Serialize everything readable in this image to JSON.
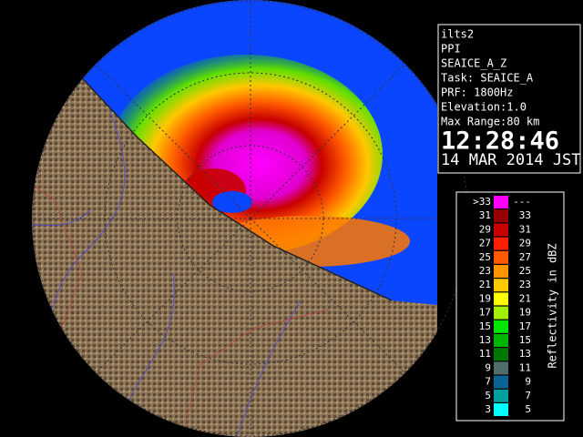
{
  "station": {
    "lines": [
      "ilts2",
      "PPI",
      "SEAICE_A_Z",
      "Task: SEAICE_A",
      "PRF: 1800Hz",
      "Elevation:1.0",
      "Max Range:80 km"
    ],
    "time": "12:28:46",
    "date": "14 MAR 2014 JST"
  },
  "legend": {
    "title": "Reflectivity in dBZ",
    "rows": [
      {
        "low": ">33",
        "high": "---",
        "color": "#ff00ff"
      },
      {
        "low": 31,
        "high": 33,
        "color": "#960000"
      },
      {
        "low": 29,
        "high": 31,
        "color": "#c80000"
      },
      {
        "low": 27,
        "high": 29,
        "color": "#ff1e00"
      },
      {
        "low": 25,
        "high": 27,
        "color": "#ff5a00"
      },
      {
        "low": 23,
        "high": 25,
        "color": "#ff9600"
      },
      {
        "low": 21,
        "high": 23,
        "color": "#ffc800"
      },
      {
        "low": 19,
        "high": 21,
        "color": "#ffff00"
      },
      {
        "low": 17,
        "high": 19,
        "color": "#a0f000"
      },
      {
        "low": 15,
        "high": 17,
        "color": "#00e600"
      },
      {
        "low": 13,
        "high": 15,
        "color": "#00b400"
      },
      {
        "low": 11,
        "high": 13,
        "color": "#007800"
      },
      {
        "low": 9,
        "high": 11,
        "color": "#506e6e"
      },
      {
        "low": 7,
        "high": 9,
        "color": "#0a6496"
      },
      {
        "low": 5,
        "high": 7,
        "color": "#00a0a0"
      },
      {
        "low": 3,
        "high": 5,
        "color": "#00ffff"
      }
    ]
  }
}
